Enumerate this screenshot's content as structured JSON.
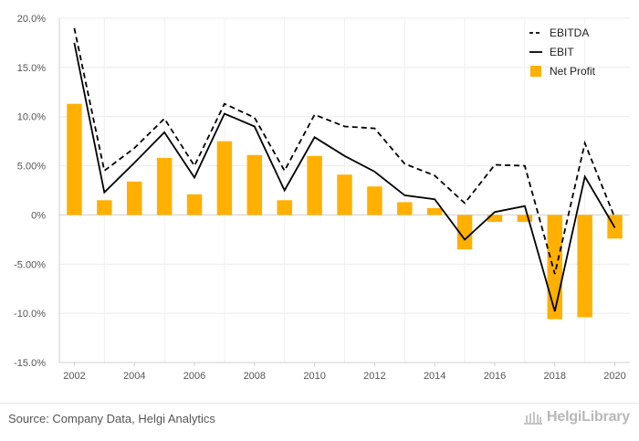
{
  "chart_data": {
    "type": "bar+line",
    "x": [
      2002,
      2003,
      2004,
      2005,
      2006,
      2007,
      2008,
      2009,
      2010,
      2011,
      2012,
      2013,
      2014,
      2015,
      2016,
      2017,
      2018,
      2019,
      2020
    ],
    "x_tick_labels": [
      "2002",
      "2004",
      "2006",
      "2008",
      "2010",
      "2012",
      "2014",
      "2016",
      "2018",
      "2020"
    ],
    "ylim": [
      -15,
      20
    ],
    "y_ticks": [
      20,
      15,
      10,
      5,
      0,
      -5,
      -10,
      -15
    ],
    "y_tick_labels": [
      "20.0%",
      "15.0%",
      "10.0%",
      "5.00%",
      "0%",
      "-5.00%",
      "-10.0%",
      "-15.0%"
    ],
    "grid": true,
    "legend_position": "top-right",
    "series": [
      {
        "name": "EBITDA",
        "kind": "line",
        "style": "dashed",
        "color": "#000000",
        "values": [
          19.0,
          4.5,
          6.8,
          9.8,
          5.0,
          11.3,
          9.9,
          4.5,
          10.2,
          9.0,
          8.8,
          5.2,
          4.0,
          1.2,
          5.1,
          5.0,
          -6.0,
          7.3,
          -0.3
        ]
      },
      {
        "name": "EBIT",
        "kind": "line",
        "style": "solid",
        "color": "#000000",
        "values": [
          17.5,
          2.3,
          5.3,
          8.4,
          3.8,
          10.3,
          9.0,
          2.5,
          7.9,
          6.0,
          4.4,
          2.0,
          1.6,
          -2.5,
          0.3,
          0.9,
          -9.8,
          3.9,
          -1.3
        ]
      },
      {
        "name": "Net Profit",
        "kind": "bar",
        "color": "#FFB000",
        "values": [
          11.3,
          1.5,
          3.4,
          5.8,
          2.1,
          7.5,
          6.1,
          1.5,
          6.0,
          4.1,
          2.9,
          1.3,
          0.7,
          -3.5,
          -0.7,
          -0.7,
          -10.6,
          -10.4,
          -2.4
        ]
      }
    ]
  },
  "footer": {
    "source": "Source: Company Data, Helgi Analytics",
    "brand": "HelgiLibrary"
  }
}
